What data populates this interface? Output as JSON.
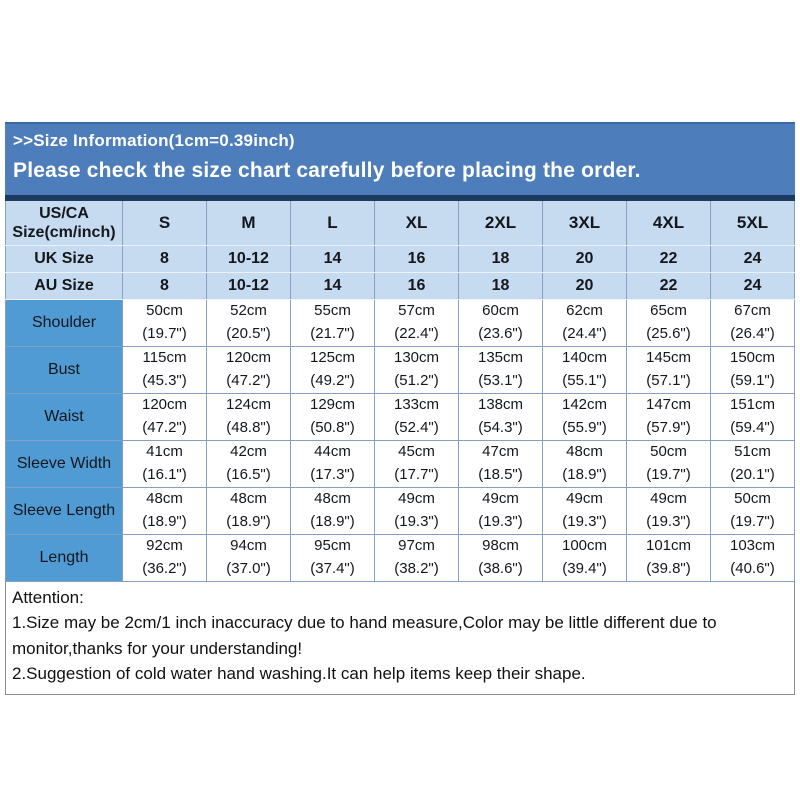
{
  "banner": {
    "line1": ">>Size Information(1cm=0.39inch)",
    "line2": "Please check the size chart carefully before placing the order."
  },
  "colors": {
    "banner_bg": "#4D7EBB",
    "banner_text": "#FFFFFF",
    "strip": "#1C3A5F",
    "header_bg": "#C6DBEF",
    "label_bg": "#519BD5",
    "border": "#83A0C2",
    "text": "#14171C"
  },
  "size_chart": {
    "header": {
      "label_lines": [
        "US/CA",
        "Size(cm/inch)"
      ],
      "sizes": [
        "S",
        "M",
        "L",
        "XL",
        "2XL",
        "3XL",
        "4XL",
        "5XL"
      ]
    },
    "uk_row": {
      "label": "UK Size",
      "values": [
        "8",
        "10-12",
        "14",
        "16",
        "18",
        "20",
        "22",
        "24"
      ]
    },
    "au_row": {
      "label": "AU Size",
      "values": [
        "8",
        "10-12",
        "14",
        "16",
        "18",
        "20",
        "22",
        "24"
      ]
    },
    "measurement_rows": [
      {
        "label": "Shoulder",
        "cells": [
          {
            "cm": "50cm",
            "inch": "(19.7\")"
          },
          {
            "cm": "52cm",
            "inch": "(20.5\")"
          },
          {
            "cm": "55cm",
            "inch": "(21.7\")"
          },
          {
            "cm": "57cm",
            "inch": "(22.4\")"
          },
          {
            "cm": "60cm",
            "inch": "(23.6\")"
          },
          {
            "cm": "62cm",
            "inch": "(24.4\")"
          },
          {
            "cm": "65cm",
            "inch": "(25.6\")"
          },
          {
            "cm": "67cm",
            "inch": "(26.4\")"
          }
        ]
      },
      {
        "label": "Bust",
        "cells": [
          {
            "cm": "115cm",
            "inch": "(45.3\")"
          },
          {
            "cm": "120cm",
            "inch": "(47.2\")"
          },
          {
            "cm": "125cm",
            "inch": "(49.2\")"
          },
          {
            "cm": "130cm",
            "inch": "(51.2\")"
          },
          {
            "cm": "135cm",
            "inch": "(53.1\")"
          },
          {
            "cm": "140cm",
            "inch": "(55.1\")"
          },
          {
            "cm": "145cm",
            "inch": "(57.1\")"
          },
          {
            "cm": "150cm",
            "inch": "(59.1\")"
          }
        ]
      },
      {
        "label": "Waist",
        "cells": [
          {
            "cm": "120cm",
            "inch": "(47.2\")"
          },
          {
            "cm": "124cm",
            "inch": "(48.8\")"
          },
          {
            "cm": "129cm",
            "inch": "(50.8\")"
          },
          {
            "cm": "133cm",
            "inch": "(52.4\")"
          },
          {
            "cm": "138cm",
            "inch": "(54.3\")"
          },
          {
            "cm": "142cm",
            "inch": "(55.9\")"
          },
          {
            "cm": "147cm",
            "inch": "(57.9\")"
          },
          {
            "cm": "151cm",
            "inch": "(59.4\")"
          }
        ]
      },
      {
        "label": "Sleeve Width",
        "cells": [
          {
            "cm": "41cm",
            "inch": "(16.1\")"
          },
          {
            "cm": "42cm",
            "inch": "(16.5\")"
          },
          {
            "cm": "44cm",
            "inch": "(17.3\")"
          },
          {
            "cm": "45cm",
            "inch": "(17.7\")"
          },
          {
            "cm": "47cm",
            "inch": "(18.5\")"
          },
          {
            "cm": "48cm",
            "inch": "(18.9\")"
          },
          {
            "cm": "50cm",
            "inch": "(19.7\")"
          },
          {
            "cm": "51cm",
            "inch": "(20.1\")"
          }
        ]
      },
      {
        "label": "Sleeve Length",
        "cells": [
          {
            "cm": "48cm",
            "inch": "(18.9\")"
          },
          {
            "cm": "48cm",
            "inch": "(18.9\")"
          },
          {
            "cm": "48cm",
            "inch": "(18.9\")"
          },
          {
            "cm": "49cm",
            "inch": "(19.3\")"
          },
          {
            "cm": "49cm",
            "inch": "(19.3\")"
          },
          {
            "cm": "49cm",
            "inch": "(19.3\")"
          },
          {
            "cm": "49cm",
            "inch": "(19.3\")"
          },
          {
            "cm": "50cm",
            "inch": "(19.7\")"
          }
        ]
      },
      {
        "label": "Length",
        "cells": [
          {
            "cm": "92cm",
            "inch": "(36.2\")"
          },
          {
            "cm": "94cm",
            "inch": "(37.0\")"
          },
          {
            "cm": "95cm",
            "inch": "(37.4\")"
          },
          {
            "cm": "97cm",
            "inch": "(38.2\")"
          },
          {
            "cm": "98cm",
            "inch": "(38.6\")"
          },
          {
            "cm": "100cm",
            "inch": "(39.4\")"
          },
          {
            "cm": "101cm",
            "inch": "(39.8\")"
          },
          {
            "cm": "103cm",
            "inch": "(40.6\")"
          }
        ]
      }
    ]
  },
  "attention": {
    "title": "Attention:",
    "notes": [
      "1.Size may be 2cm/1 inch inaccuracy due to hand measure,Color may be little different due to monitor,thanks for your understanding!",
      "2.Suggestion of cold water hand washing.It can help items keep their shape."
    ]
  }
}
